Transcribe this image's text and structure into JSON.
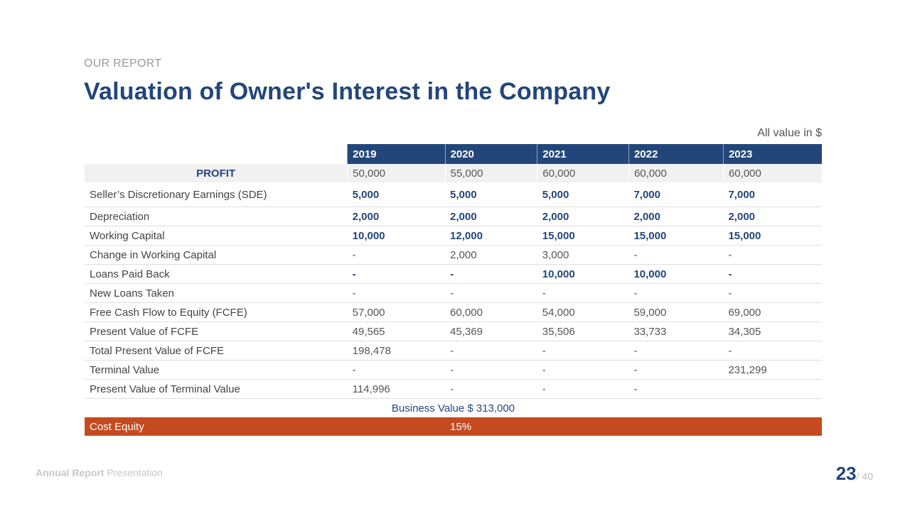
{
  "header": {
    "eyebrow": "OUR REPORT",
    "title": "Valuation of Owner's Interest in the Company",
    "units_note": "All value in $"
  },
  "table": {
    "columns": [
      "2019",
      "2020",
      "2021",
      "2022",
      "2023"
    ],
    "profit": {
      "label": "PROFIT",
      "values": [
        "50,000",
        "55,000",
        "60,000",
        "60,000",
        "60,000"
      ]
    },
    "rows": [
      {
        "label": "Seller’s Discretionary Earnings (SDE)",
        "values": [
          "5,000",
          "5,000",
          "5,000",
          "7,000",
          "7,000"
        ],
        "highlight": [
          true,
          true,
          true,
          true,
          true
        ]
      },
      {
        "label": "Depreciation",
        "values": [
          "2,000",
          "2,000",
          "2,000",
          "2,000",
          "2,000"
        ],
        "highlight": [
          true,
          true,
          true,
          true,
          true
        ]
      },
      {
        "label": "Working Capital",
        "values": [
          "10,000",
          "12,000",
          "15,000",
          "15,000",
          "15,000"
        ],
        "highlight": [
          true,
          true,
          true,
          true,
          true
        ]
      },
      {
        "label": "Change in Working Capital",
        "values": [
          "-",
          "2,000",
          "3,000",
          "-",
          "-"
        ],
        "highlight": [
          false,
          false,
          false,
          false,
          false
        ]
      },
      {
        "label": "Loans Paid Back",
        "values": [
          "-",
          "-",
          "10,000",
          "10,000",
          "-"
        ],
        "highlight": [
          true,
          true,
          true,
          true,
          true
        ]
      },
      {
        "label": "New Loans Taken",
        "values": [
          "-",
          "-",
          "-",
          "-",
          "-"
        ],
        "highlight": [
          false,
          false,
          false,
          false,
          false
        ]
      },
      {
        "label": "Free Cash Flow to Equity (FCFE)",
        "values": [
          "57,000",
          "60,000",
          "54,000",
          "59,000",
          "69,000"
        ],
        "highlight": [
          false,
          false,
          false,
          false,
          false
        ]
      },
      {
        "label": "Present Value of FCFE",
        "values": [
          "49,565",
          "45,369",
          "35,506",
          "33,733",
          "34,305"
        ],
        "highlight": [
          false,
          false,
          false,
          false,
          false
        ]
      },
      {
        "label": "Total Present Value of FCFE",
        "values": [
          "198,478",
          "-",
          "-",
          "-",
          "-"
        ],
        "highlight": [
          false,
          false,
          false,
          false,
          false
        ]
      },
      {
        "label": "Terminal Value",
        "values": [
          "-",
          "-",
          "-",
          "-",
          "231,299"
        ],
        "highlight": [
          false,
          false,
          false,
          false,
          false
        ]
      },
      {
        "label": "Present Value of Terminal Value",
        "values": [
          "114,996",
          "-",
          "-",
          "-",
          ""
        ],
        "highlight": [
          false,
          false,
          false,
          false,
          false
        ]
      }
    ],
    "business_value": "Business Value $ 313,000",
    "cost_equity": {
      "label": "Cost Equity",
      "value": "15%"
    }
  },
  "colors": {
    "primary": "#23467a",
    "accent": "#c54a20",
    "profit_bg": "#f1f1f1"
  },
  "footer": {
    "presentation_bold": "Annual Report",
    "presentation_rest": " Presentation",
    "page_current": "23",
    "page_total": "/ 40"
  }
}
